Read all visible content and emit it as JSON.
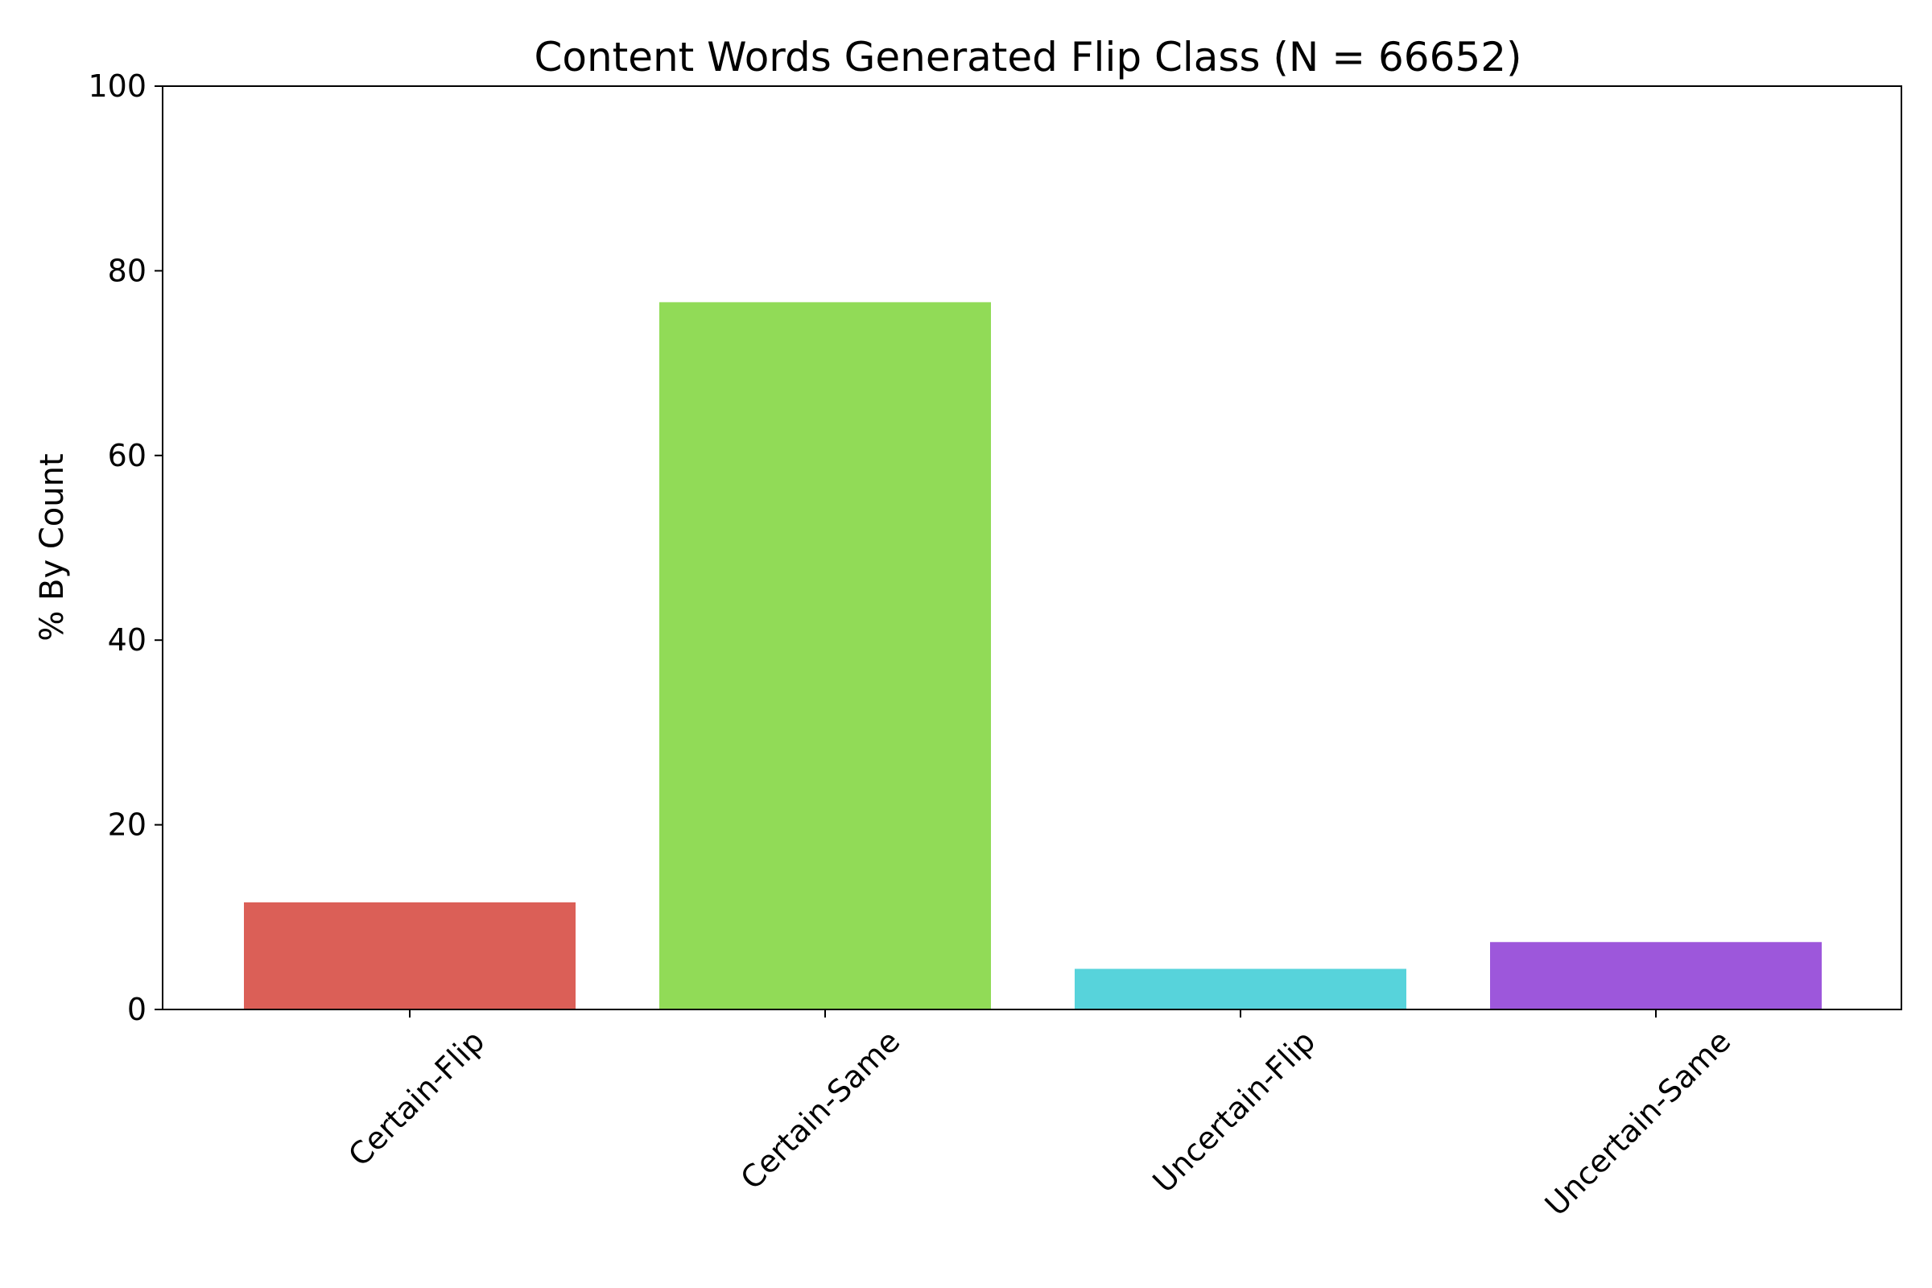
{
  "chart_data": {
    "type": "bar",
    "title": "Content Words Generated Flip Class (N = 66652)",
    "xlabel": "",
    "ylabel": "% By Count",
    "categories": [
      "Certain-Flip",
      "Certain-Same",
      "Uncertain-Flip",
      "Uncertain-Same"
    ],
    "values": [
      11.6,
      76.6,
      4.4,
      7.3
    ],
    "colors": [
      "#db5f57",
      "#91db57",
      "#57d3db",
      "#9d57db"
    ],
    "ylim": [
      0,
      100
    ],
    "yticks": [
      0,
      20,
      40,
      60,
      80,
      100
    ],
    "grid": false,
    "legend": "none"
  }
}
